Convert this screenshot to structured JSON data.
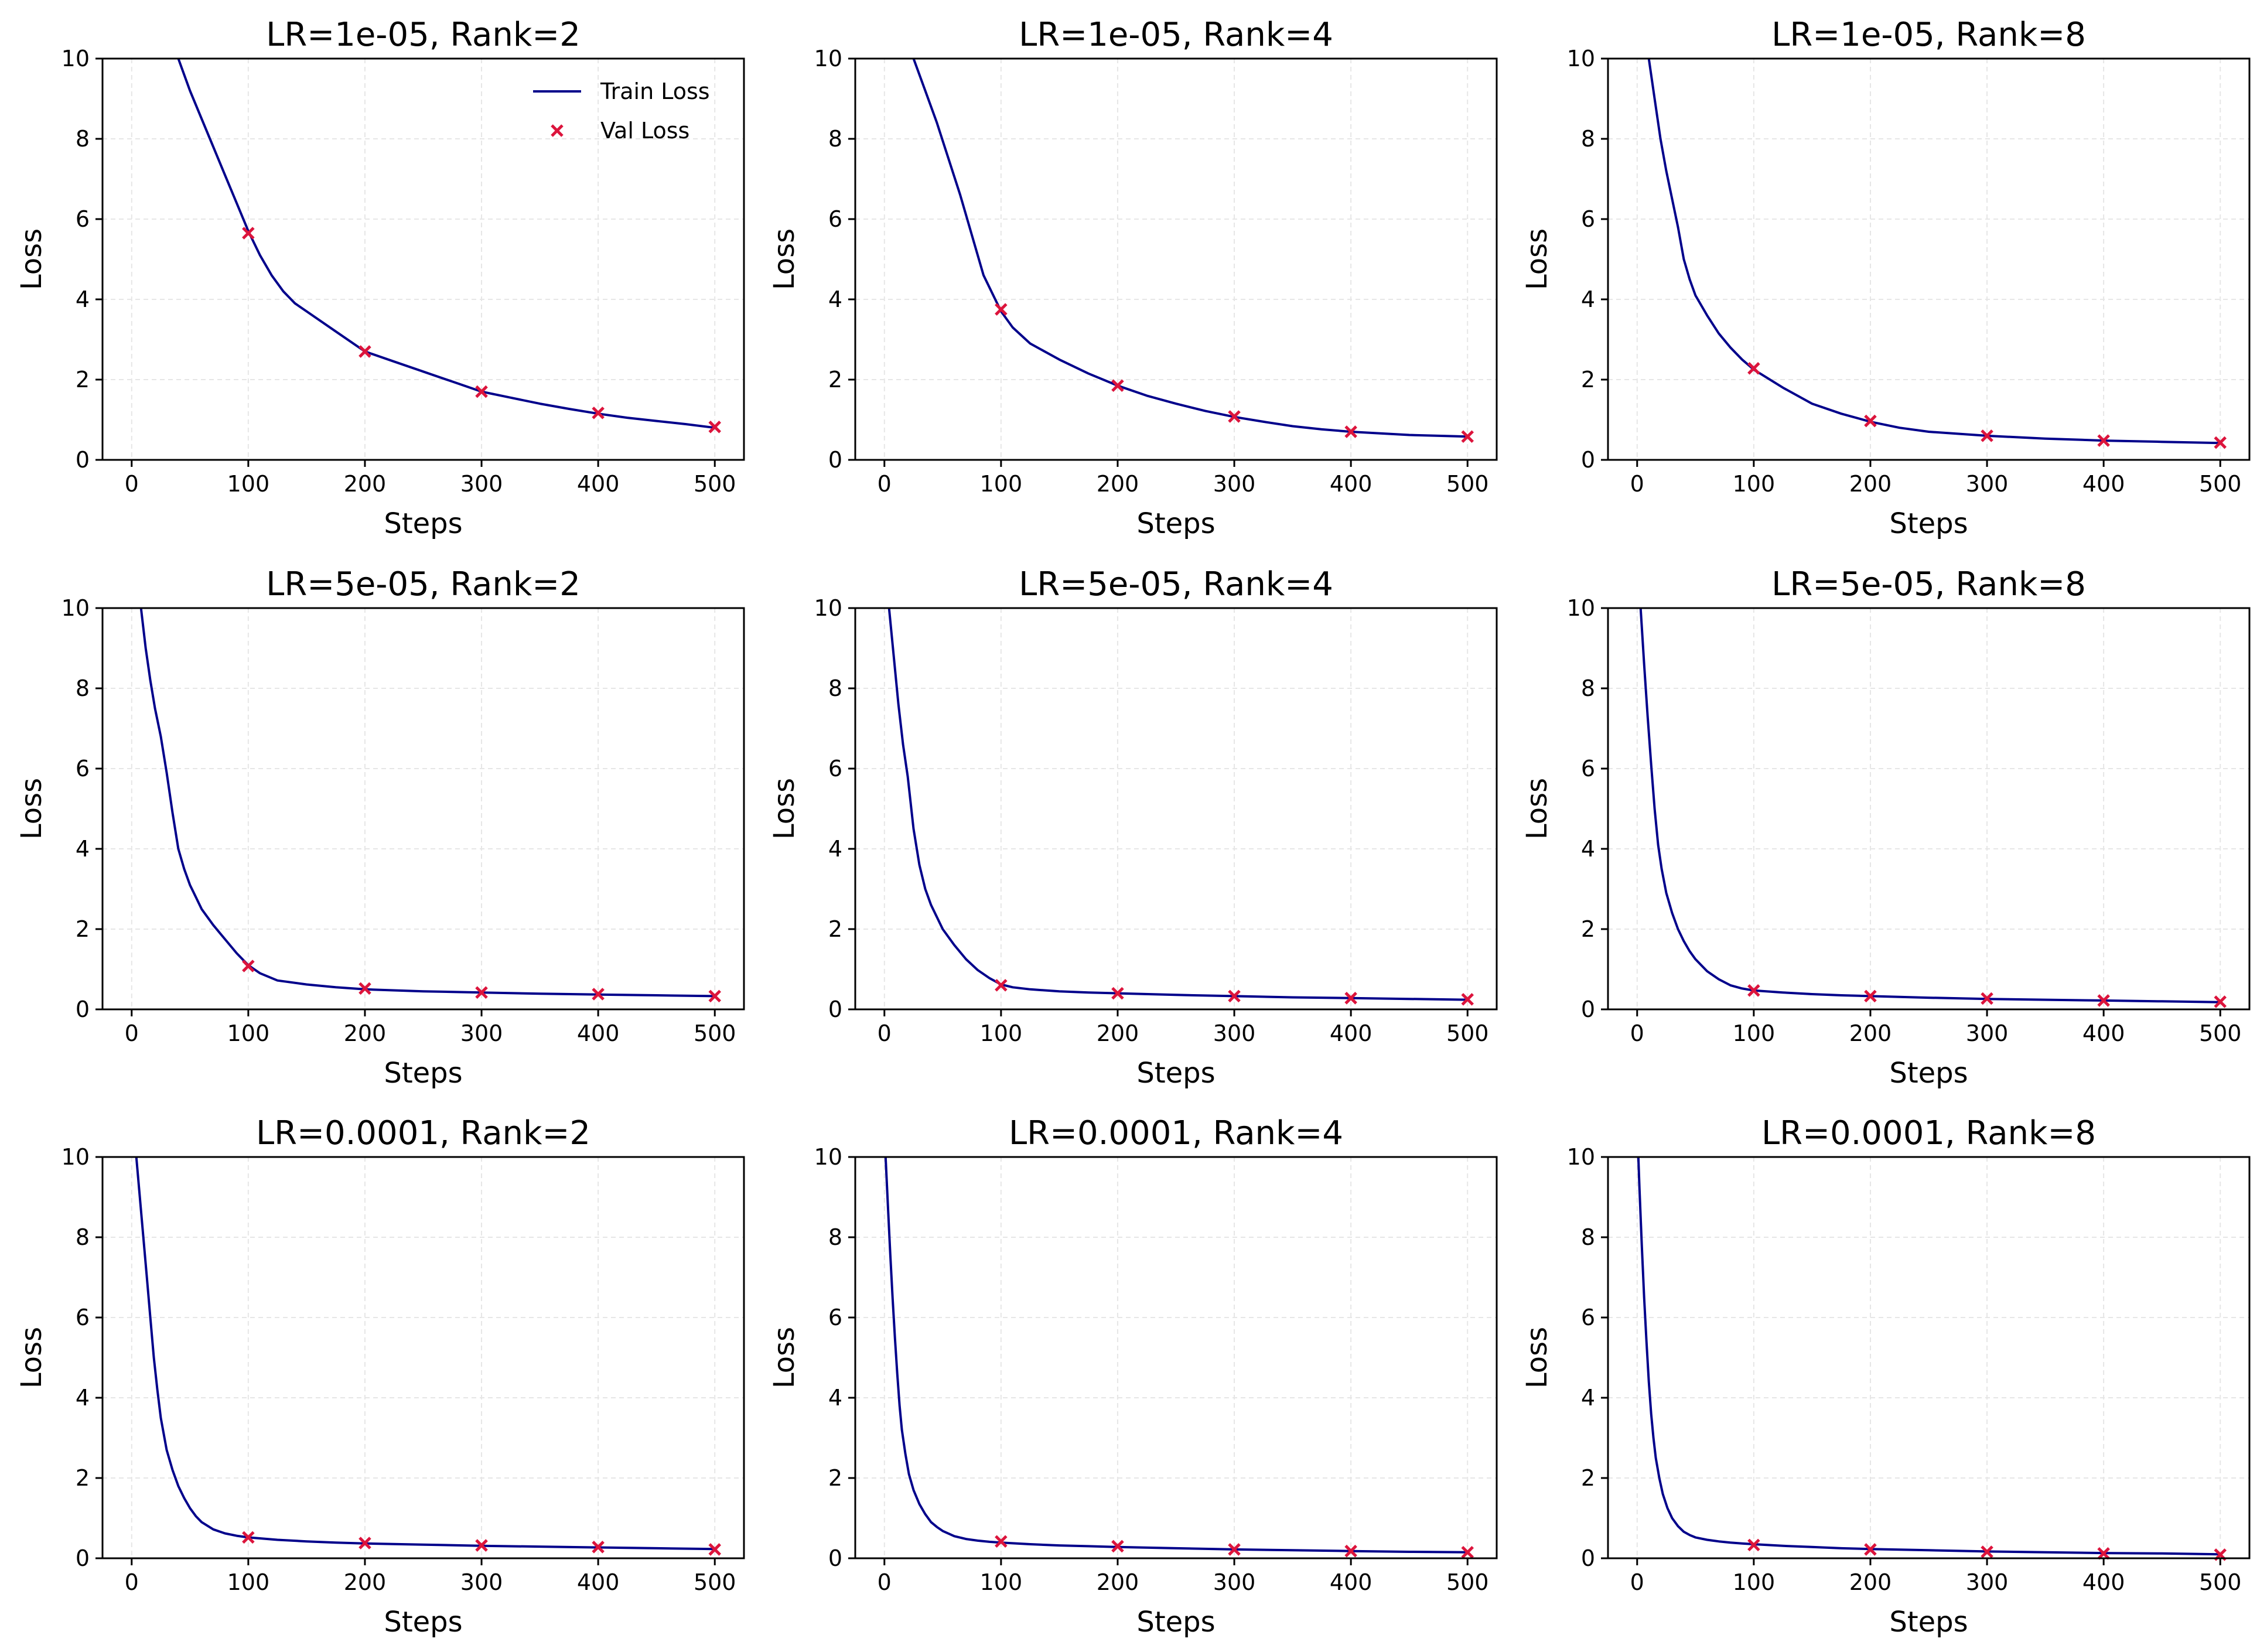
{
  "colors": {
    "train": "#00008b",
    "val": "#dc143c",
    "grid": "#e6e6e6",
    "axes": "#000000"
  },
  "legend": {
    "train_label": "Train Loss",
    "val_label": "Val Loss",
    "placement": "top-right",
    "panel": 0
  },
  "chart_data": [
    {
      "type": "line",
      "title": "LR=1e-05, Rank=2",
      "xlabel": "Steps",
      "ylabel": "Loss",
      "xlim": [
        -25,
        525
      ],
      "ylim": [
        0,
        10
      ],
      "xticks": [
        0,
        100,
        200,
        300,
        400,
        500
      ],
      "yticks": [
        0,
        2,
        4,
        6,
        8,
        10
      ],
      "grid": true,
      "series": [
        {
          "name": "Train Loss",
          "x": [
            40,
            50,
            60,
            70,
            80,
            90,
            100,
            110,
            120,
            130,
            140,
            150,
            175,
            200,
            225,
            250,
            275,
            300,
            325,
            350,
            375,
            400,
            425,
            450,
            475,
            500
          ],
          "y": [
            10.0,
            9.2,
            8.5,
            7.8,
            7.1,
            6.4,
            5.7,
            5.1,
            4.6,
            4.2,
            3.9,
            3.7,
            3.2,
            2.7,
            2.45,
            2.2,
            1.95,
            1.7,
            1.55,
            1.4,
            1.27,
            1.15,
            1.05,
            0.97,
            0.89,
            0.8
          ]
        },
        {
          "name": "Val Loss",
          "x": [
            100,
            200,
            300,
            400,
            500
          ],
          "y": [
            5.65,
            2.7,
            1.7,
            1.17,
            0.82
          ]
        }
      ]
    },
    {
      "type": "line",
      "title": "LR=1e-05, Rank=4",
      "xlabel": "Steps",
      "ylabel": "Loss",
      "xlim": [
        -25,
        525
      ],
      "ylim": [
        0,
        10
      ],
      "xticks": [
        0,
        100,
        200,
        300,
        400,
        500
      ],
      "yticks": [
        0,
        2,
        4,
        6,
        8,
        10
      ],
      "grid": true,
      "series": [
        {
          "name": "Train Loss",
          "x": [
            25,
            35,
            45,
            55,
            65,
            75,
            85,
            100,
            110,
            125,
            150,
            175,
            200,
            225,
            250,
            275,
            300,
            325,
            350,
            375,
            400,
            425,
            450,
            475,
            500
          ],
          "y": [
            10.0,
            9.2,
            8.4,
            7.5,
            6.6,
            5.6,
            4.6,
            3.7,
            3.3,
            2.9,
            2.5,
            2.15,
            1.85,
            1.6,
            1.4,
            1.22,
            1.07,
            0.95,
            0.84,
            0.76,
            0.7,
            0.66,
            0.62,
            0.6,
            0.58
          ]
        },
        {
          "name": "Val Loss",
          "x": [
            100,
            200,
            300,
            400,
            500
          ],
          "y": [
            3.75,
            1.85,
            1.08,
            0.7,
            0.58
          ]
        }
      ]
    },
    {
      "type": "line",
      "title": "LR=1e-05, Rank=8",
      "xlabel": "Steps",
      "ylabel": "Loss",
      "xlim": [
        -25,
        525
      ],
      "ylim": [
        0,
        10
      ],
      "xticks": [
        0,
        100,
        200,
        300,
        400,
        500
      ],
      "yticks": [
        0,
        2,
        4,
        6,
        8,
        10
      ],
      "grid": true,
      "series": [
        {
          "name": "Train Loss",
          "x": [
            10,
            15,
            20,
            25,
            30,
            35,
            40,
            45,
            50,
            60,
            70,
            80,
            90,
            100,
            125,
            150,
            175,
            200,
            225,
            250,
            300,
            350,
            400,
            450,
            500
          ],
          "y": [
            10.0,
            9.0,
            8.0,
            7.2,
            6.5,
            5.8,
            5.0,
            4.5,
            4.1,
            3.6,
            3.15,
            2.8,
            2.5,
            2.25,
            1.8,
            1.4,
            1.15,
            0.95,
            0.8,
            0.7,
            0.6,
            0.53,
            0.48,
            0.45,
            0.42
          ]
        },
        {
          "name": "Val Loss",
          "x": [
            100,
            200,
            300,
            400,
            500
          ],
          "y": [
            2.28,
            0.97,
            0.6,
            0.48,
            0.43
          ]
        }
      ]
    },
    {
      "type": "line",
      "title": "LR=5e-05, Rank=2",
      "xlabel": "Steps",
      "ylabel": "Loss",
      "xlim": [
        -25,
        525
      ],
      "ylim": [
        0,
        10
      ],
      "xticks": [
        0,
        100,
        200,
        300,
        400,
        500
      ],
      "yticks": [
        0,
        2,
        4,
        6,
        8,
        10
      ],
      "grid": true,
      "series": [
        {
          "name": "Train Loss",
          "x": [
            8,
            12,
            16,
            20,
            25,
            30,
            35,
            40,
            45,
            50,
            55,
            60,
            70,
            80,
            90,
            100,
            110,
            125,
            150,
            175,
            200,
            250,
            300,
            350,
            400,
            450,
            500
          ],
          "y": [
            10.0,
            9.0,
            8.2,
            7.5,
            6.8,
            5.9,
            4.9,
            4.0,
            3.5,
            3.1,
            2.8,
            2.5,
            2.1,
            1.75,
            1.4,
            1.1,
            0.9,
            0.72,
            0.62,
            0.55,
            0.5,
            0.45,
            0.42,
            0.39,
            0.37,
            0.35,
            0.33
          ]
        },
        {
          "name": "Val Loss",
          "x": [
            100,
            200,
            300,
            400,
            500
          ],
          "y": [
            1.08,
            0.52,
            0.42,
            0.38,
            0.33
          ]
        }
      ]
    },
    {
      "type": "line",
      "title": "LR=5e-05, Rank=4",
      "xlabel": "Steps",
      "ylabel": "Loss",
      "xlim": [
        -25,
        525
      ],
      "ylim": [
        0,
        10
      ],
      "xticks": [
        0,
        100,
        200,
        300,
        400,
        500
      ],
      "yticks": [
        0,
        2,
        4,
        6,
        8,
        10
      ],
      "grid": true,
      "series": [
        {
          "name": "Train Loss",
          "x": [
            4,
            8,
            12,
            16,
            20,
            25,
            30,
            35,
            40,
            45,
            50,
            60,
            70,
            80,
            90,
            100,
            110,
            125,
            150,
            175,
            200,
            250,
            300,
            350,
            400,
            450,
            500
          ],
          "y": [
            10.0,
            8.8,
            7.6,
            6.6,
            5.8,
            4.5,
            3.6,
            3.0,
            2.6,
            2.3,
            2.0,
            1.6,
            1.25,
            0.98,
            0.78,
            0.62,
            0.55,
            0.5,
            0.45,
            0.42,
            0.4,
            0.36,
            0.33,
            0.3,
            0.28,
            0.26,
            0.24
          ]
        },
        {
          "name": "Val Loss",
          "x": [
            100,
            200,
            300,
            400,
            500
          ],
          "y": [
            0.6,
            0.4,
            0.33,
            0.28,
            0.25
          ]
        }
      ]
    },
    {
      "type": "line",
      "title": "LR=5e-05, Rank=8",
      "xlabel": "Steps",
      "ylabel": "Loss",
      "xlim": [
        -25,
        525
      ],
      "ylim": [
        0,
        10
      ],
      "xticks": [
        0,
        100,
        200,
        300,
        400,
        500
      ],
      "yticks": [
        0,
        2,
        4,
        6,
        8,
        10
      ],
      "grid": true,
      "series": [
        {
          "name": "Train Loss",
          "x": [
            3,
            6,
            9,
            12,
            15,
            18,
            21,
            25,
            30,
            35,
            40,
            45,
            50,
            60,
            70,
            80,
            90,
            100,
            125,
            150,
            175,
            200,
            250,
            300,
            350,
            400,
            450,
            500
          ],
          "y": [
            10.0,
            8.6,
            7.3,
            6.1,
            5.0,
            4.1,
            3.5,
            2.9,
            2.4,
            2.0,
            1.7,
            1.45,
            1.25,
            0.95,
            0.75,
            0.6,
            0.52,
            0.47,
            0.42,
            0.38,
            0.35,
            0.33,
            0.29,
            0.26,
            0.24,
            0.22,
            0.2,
            0.18
          ]
        },
        {
          "name": "Val Loss",
          "x": [
            100,
            200,
            300,
            400,
            500
          ],
          "y": [
            0.47,
            0.33,
            0.27,
            0.22,
            0.19
          ]
        }
      ]
    },
    {
      "type": "line",
      "title": "LR=0.0001, Rank=2",
      "xlabel": "Steps",
      "ylabel": "Loss",
      "xlim": [
        -25,
        525
      ],
      "ylim": [
        0,
        10
      ],
      "xticks": [
        0,
        100,
        200,
        300,
        400,
        500
      ],
      "yticks": [
        0,
        2,
        4,
        6,
        8,
        10
      ],
      "grid": true,
      "series": [
        {
          "name": "Train Loss",
          "x": [
            4,
            7,
            10,
            13,
            16,
            19,
            22,
            25,
            30,
            35,
            40,
            45,
            50,
            55,
            60,
            70,
            80,
            90,
            100,
            125,
            150,
            175,
            200,
            250,
            300,
            350,
            400,
            450,
            500
          ],
          "y": [
            10.0,
            9.0,
            8.0,
            7.0,
            6.0,
            5.0,
            4.2,
            3.5,
            2.7,
            2.2,
            1.8,
            1.5,
            1.25,
            1.05,
            0.9,
            0.72,
            0.62,
            0.56,
            0.52,
            0.46,
            0.42,
            0.39,
            0.37,
            0.34,
            0.31,
            0.29,
            0.27,
            0.25,
            0.23
          ]
        },
        {
          "name": "Val Loss",
          "x": [
            100,
            200,
            300,
            400,
            500
          ],
          "y": [
            0.52,
            0.38,
            0.32,
            0.28,
            0.22
          ]
        }
      ]
    },
    {
      "type": "line",
      "title": "LR=0.0001, Rank=4",
      "xlabel": "Steps",
      "ylabel": "Loss",
      "xlim": [
        -25,
        525
      ],
      "ylim": [
        0,
        10
      ],
      "xticks": [
        0,
        100,
        200,
        300,
        400,
        500
      ],
      "yticks": [
        0,
        2,
        4,
        6,
        8,
        10
      ],
      "grid": true,
      "series": [
        {
          "name": "Train Loss",
          "x": [
            1,
            3,
            5,
            7,
            9,
            11,
            13,
            15,
            18,
            21,
            25,
            30,
            35,
            40,
            45,
            50,
            60,
            70,
            80,
            90,
            100,
            125,
            150,
            175,
            200,
            250,
            300,
            350,
            400,
            450,
            500
          ],
          "y": [
            10.0,
            8.8,
            7.6,
            6.5,
            5.5,
            4.6,
            3.8,
            3.2,
            2.6,
            2.1,
            1.7,
            1.35,
            1.1,
            0.9,
            0.78,
            0.68,
            0.55,
            0.48,
            0.44,
            0.41,
            0.39,
            0.35,
            0.32,
            0.3,
            0.28,
            0.25,
            0.22,
            0.2,
            0.18,
            0.16,
            0.15
          ]
        },
        {
          "name": "Val Loss",
          "x": [
            100,
            200,
            300,
            400,
            500
          ],
          "y": [
            0.42,
            0.3,
            0.22,
            0.18,
            0.15
          ]
        }
      ]
    },
    {
      "type": "line",
      "title": "LR=0.0001, Rank=8",
      "xlabel": "Steps",
      "ylabel": "Loss",
      "xlim": [
        -25,
        525
      ],
      "ylim": [
        0,
        10
      ],
      "xticks": [
        0,
        100,
        200,
        300,
        400,
        500
      ],
      "yticks": [
        0,
        2,
        4,
        6,
        8,
        10
      ],
      "grid": true,
      "series": [
        {
          "name": "Train Loss",
          "x": [
            1,
            2,
            4,
            6,
            8,
            10,
            12,
            14,
            16,
            19,
            22,
            26,
            30,
            35,
            40,
            45,
            50,
            60,
            70,
            80,
            90,
            100,
            125,
            150,
            175,
            200,
            250,
            300,
            350,
            400,
            450,
            500
          ],
          "y": [
            10.0,
            9.2,
            7.8,
            6.5,
            5.4,
            4.4,
            3.6,
            3.0,
            2.5,
            2.0,
            1.6,
            1.25,
            1.0,
            0.8,
            0.66,
            0.58,
            0.52,
            0.46,
            0.42,
            0.39,
            0.37,
            0.35,
            0.31,
            0.28,
            0.25,
            0.23,
            0.2,
            0.17,
            0.15,
            0.13,
            0.12,
            0.1
          ]
        },
        {
          "name": "Val Loss",
          "x": [
            100,
            200,
            300,
            400,
            500
          ],
          "y": [
            0.33,
            0.22,
            0.16,
            0.12,
            0.09
          ]
        }
      ]
    }
  ]
}
